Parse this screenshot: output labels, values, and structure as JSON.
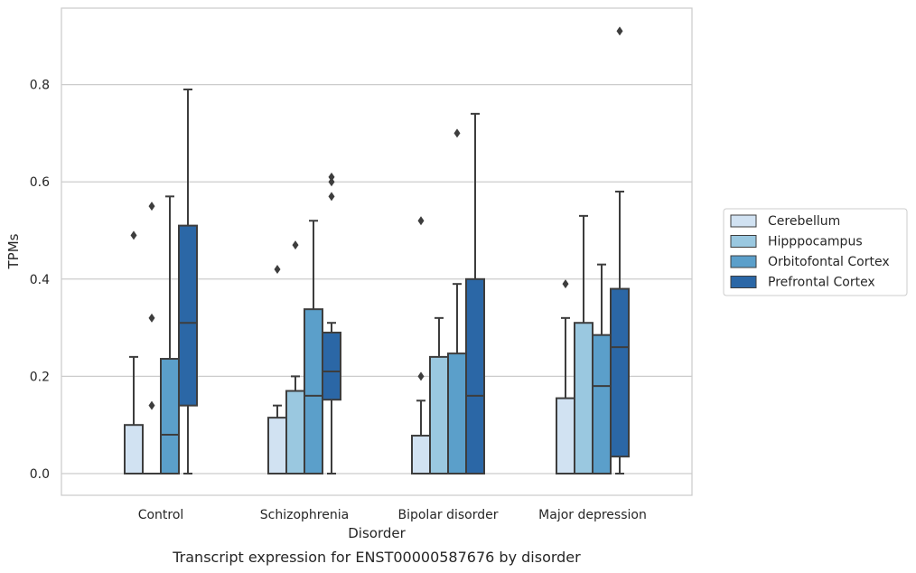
{
  "chart_data": {
    "type": "box",
    "categories": [
      "Control",
      "Schizophrenia",
      "Bipolar disorder",
      "Major depression"
    ],
    "xlabel": "Disorder",
    "ylabel": "TPMs",
    "caption": "Transcript expression for ENST00000587676 by disorder",
    "ylim": [
      -0.04,
      0.95
    ],
    "yticks": [
      0.0,
      0.2,
      0.4,
      0.6,
      0.8
    ],
    "ytick_labels": [
      "0.0",
      "0.2",
      "0.4",
      "0.6",
      "0.8"
    ],
    "grid": true,
    "legend_position": "right",
    "series": [
      {
        "name": "Cerebellum",
        "color": "#d1e2f2",
        "boxes": [
          {
            "whisker_low": 0.0,
            "q1": 0.0,
            "median": 0.0,
            "q3": 0.1,
            "whisker_high": 0.24,
            "outliers": [
              0.49
            ]
          },
          {
            "whisker_low": 0.0,
            "q1": 0.0,
            "median": 0.0,
            "q3": 0.115,
            "whisker_high": 0.14,
            "outliers": [
              0.42
            ]
          },
          {
            "whisker_low": 0.0,
            "q1": 0.0,
            "median": 0.0,
            "q3": 0.078,
            "whisker_high": 0.15,
            "outliers": [
              0.2,
              0.52
            ]
          },
          {
            "whisker_low": 0.0,
            "q1": 0.0,
            "median": 0.0,
            "q3": 0.155,
            "whisker_high": 0.32,
            "outliers": [
              0.39
            ]
          }
        ]
      },
      {
        "name": "Hipppocampus",
        "color": "#9ac8e0",
        "boxes": [
          {
            "whisker_low": 0.0,
            "q1": 0.0,
            "median": 0.0,
            "q3": 0.0,
            "whisker_high": 0.0,
            "outliers": [
              0.14,
              0.32,
              0.55
            ]
          },
          {
            "whisker_low": 0.0,
            "q1": 0.0,
            "median": 0.0,
            "q3": 0.17,
            "whisker_high": 0.2,
            "outliers": [
              0.47
            ]
          },
          {
            "whisker_low": 0.0,
            "q1": 0.0,
            "median": 0.0,
            "q3": 0.24,
            "whisker_high": 0.32,
            "outliers": []
          },
          {
            "whisker_low": 0.0,
            "q1": 0.0,
            "median": 0.0,
            "q3": 0.31,
            "whisker_high": 0.53,
            "outliers": []
          }
        ]
      },
      {
        "name": "Orbitofontal Cortex",
        "color": "#5b9fca",
        "boxes": [
          {
            "whisker_low": 0.0,
            "q1": 0.0,
            "median": 0.08,
            "q3": 0.236,
            "whisker_high": 0.57,
            "outliers": []
          },
          {
            "whisker_low": 0.0,
            "q1": 0.0,
            "median": 0.16,
            "q3": 0.338,
            "whisker_high": 0.52,
            "outliers": []
          },
          {
            "whisker_low": 0.0,
            "q1": 0.0,
            "median": 0.0,
            "q3": 0.247,
            "whisker_high": 0.39,
            "outliers": [
              0.7
            ]
          },
          {
            "whisker_low": 0.0,
            "q1": 0.0,
            "median": 0.18,
            "q3": 0.285,
            "whisker_high": 0.43,
            "outliers": []
          }
        ]
      },
      {
        "name": "Prefrontal Cortex",
        "color": "#2b67a6",
        "boxes": [
          {
            "whisker_low": 0.0,
            "q1": 0.14,
            "median": 0.31,
            "q3": 0.51,
            "whisker_high": 0.79,
            "outliers": []
          },
          {
            "whisker_low": 0.0,
            "q1": 0.152,
            "median": 0.21,
            "q3": 0.29,
            "whisker_high": 0.31,
            "outliers": [
              0.57,
              0.6,
              0.61
            ]
          },
          {
            "whisker_low": 0.0,
            "q1": 0.0,
            "median": 0.16,
            "q3": 0.4,
            "whisker_high": 0.74,
            "outliers": []
          },
          {
            "whisker_low": 0.0,
            "q1": 0.035,
            "median": 0.26,
            "q3": 0.38,
            "whisker_high": 0.58,
            "outliers": [
              0.91
            ]
          }
        ]
      }
    ]
  }
}
